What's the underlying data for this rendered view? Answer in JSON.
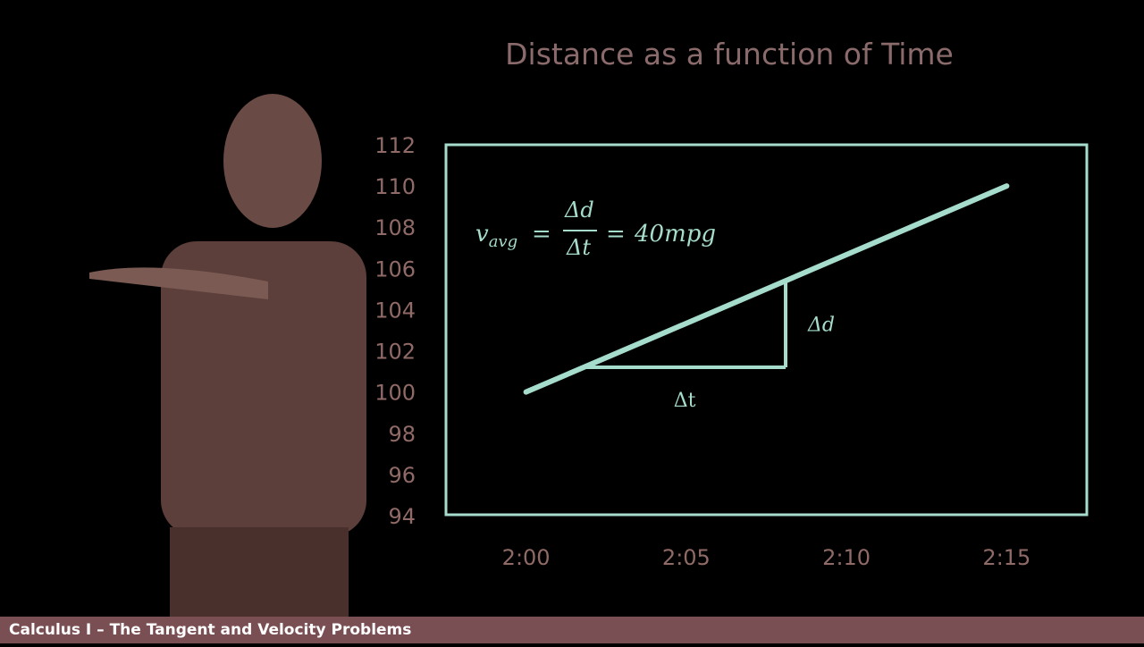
{
  "colors": {
    "background": "#000000",
    "axis_text": "#8f6a66",
    "title_text": "#8a6a6a",
    "accent": "#a6dccb",
    "footer_bg": "#7a4f53",
    "footer_text": "#ffffff"
  },
  "chart_data": {
    "type": "line",
    "title": "Distance as a function of Time",
    "xlabel": "",
    "ylabel": "",
    "x_ticks": [
      "2:00",
      "2:05",
      "2:10",
      "2:15"
    ],
    "x_tick_minutes": [
      0,
      5,
      10,
      15
    ],
    "xlim_minutes": [
      -2.5,
      17.5
    ],
    "y_ticks": [
      "112",
      "110",
      "108",
      "106",
      "104",
      "102",
      "100",
      "98",
      "96",
      "94"
    ],
    "y_tick_values": [
      112,
      110,
      108,
      106,
      104,
      102,
      100,
      98,
      96,
      94
    ],
    "ylim": [
      94,
      112
    ],
    "grid": false,
    "series": [
      {
        "values": [
          {
            "minutes": 0,
            "distance": 100
          },
          {
            "minutes": 15,
            "distance": 110
          }
        ]
      }
    ],
    "triangle": {
      "start": {
        "minutes": 1.8,
        "distance": 101.2
      },
      "corner": {
        "minutes": 8.1,
        "distance": 101.2
      },
      "end": {
        "minutes": 8.1,
        "distance": 105.4
      },
      "dt_label": "Δt",
      "dd_label": "Δd"
    },
    "annotation": {
      "lhs": "v",
      "lhs_sub": "avg",
      "eq1": "=",
      "numerator": "Δd",
      "denominator": "Δt",
      "eq2": "=",
      "rhs": "40mpg"
    }
  },
  "footer": {
    "text": "Calculus I – The Tangent and Velocity Problems"
  }
}
